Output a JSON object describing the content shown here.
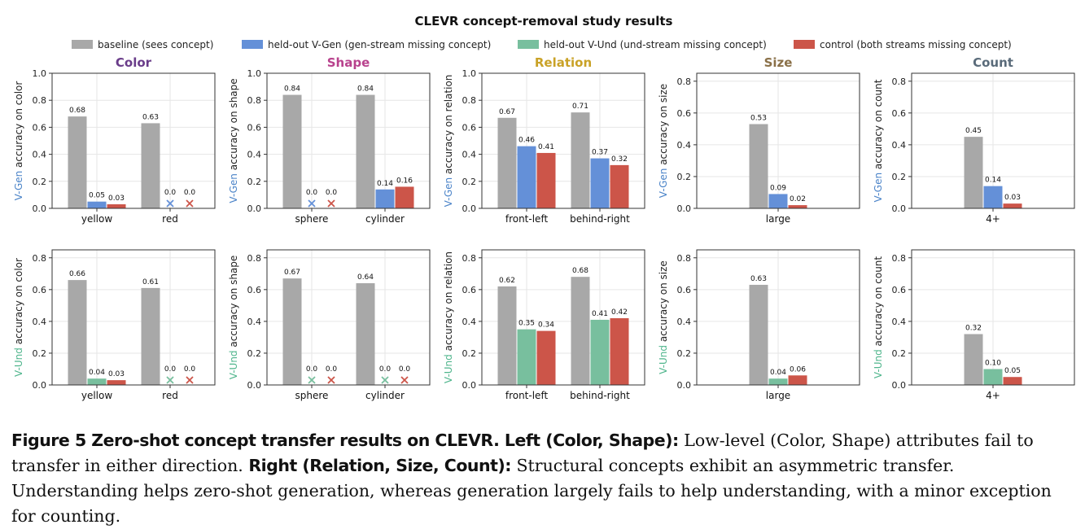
{
  "figure_title": "CLEVR concept-removal study results",
  "colors": {
    "baseline": "#a8a8a8",
    "gen": "#6490d8",
    "und": "#78bf9e",
    "control": "#cc5549",
    "vgen_label": "#4a83c8",
    "vund_label": "#4fb58c",
    "panel_titles": [
      "#6a3d8a",
      "#b8428d",
      "#c9a227",
      "#8a7048",
      "#5a6b7a"
    ]
  },
  "chart_data": {
    "type": "bar",
    "legend_position": "top-center",
    "grid": true,
    "legend": [
      {
        "key": "baseline",
        "label": "baseline (sees concept)"
      },
      {
        "key": "gen",
        "label": "held-out V-Gen (gen-stream missing concept)"
      },
      {
        "key": "und",
        "label": "held-out V-Und (und-stream missing concept)"
      },
      {
        "key": "control",
        "label": "control (both streams missing concept)"
      }
    ],
    "panels": [
      {
        "row": 0,
        "col": 0,
        "title": "Color",
        "ylabel_prefix": "V-Gen",
        "ylabel_suffix": " accuracy on color",
        "ylim": [
          0,
          1.0
        ],
        "yticks": [
          "0.0",
          "0.2",
          "0.4",
          "0.6",
          "0.8",
          "1.0"
        ],
        "categories": [
          "yellow",
          "red"
        ],
        "series": [
          {
            "key": "baseline",
            "values": [
              0.68,
              0.63
            ],
            "labels": [
              "0.68",
              "0.63"
            ]
          },
          {
            "key": "gen",
            "values": [
              0.05,
              0.0
            ],
            "labels": [
              "0.05",
              "0.0"
            ]
          },
          {
            "key": "control",
            "values": [
              0.03,
              0.0
            ],
            "labels": [
              "0.03",
              "0.0"
            ]
          }
        ]
      },
      {
        "row": 0,
        "col": 1,
        "title": "Shape",
        "ylabel_prefix": "V-Gen",
        "ylabel_suffix": " accuracy on shape",
        "ylim": [
          0,
          1.0
        ],
        "yticks": [
          "0.0",
          "0.2",
          "0.4",
          "0.6",
          "0.8",
          "1.0"
        ],
        "categories": [
          "sphere",
          "cylinder"
        ],
        "series": [
          {
            "key": "baseline",
            "values": [
              0.84,
              0.84
            ],
            "labels": [
              "0.84",
              "0.84"
            ]
          },
          {
            "key": "gen",
            "values": [
              0.0,
              0.14
            ],
            "labels": [
              "0.0",
              "0.14"
            ]
          },
          {
            "key": "control",
            "values": [
              0.0,
              0.16
            ],
            "labels": [
              "0.0",
              "0.16"
            ]
          }
        ]
      },
      {
        "row": 0,
        "col": 2,
        "title": "Relation",
        "ylabel_prefix": "V-Gen",
        "ylabel_suffix": " accuracy on relation",
        "ylim": [
          0,
          1.0
        ],
        "yticks": [
          "0.0",
          "0.2",
          "0.4",
          "0.6",
          "0.8",
          "1.0"
        ],
        "categories": [
          "front-left",
          "behind-right"
        ],
        "series": [
          {
            "key": "baseline",
            "values": [
              0.67,
              0.71
            ],
            "labels": [
              "0.67",
              "0.71"
            ]
          },
          {
            "key": "gen",
            "values": [
              0.46,
              0.37
            ],
            "labels": [
              "0.46",
              "0.37"
            ]
          },
          {
            "key": "control",
            "values": [
              0.41,
              0.32
            ],
            "labels": [
              "0.41",
              "0.32"
            ]
          }
        ]
      },
      {
        "row": 0,
        "col": 3,
        "title": "Size",
        "ylabel_prefix": "V-Gen",
        "ylabel_suffix": " accuracy on size",
        "ylim": [
          0,
          0.85
        ],
        "yticks": [
          "0.0",
          "0.2",
          "0.4",
          "0.6",
          "0.8"
        ],
        "categories": [
          "large"
        ],
        "series": [
          {
            "key": "baseline",
            "values": [
              0.53
            ],
            "labels": [
              "0.53"
            ]
          },
          {
            "key": "gen",
            "values": [
              0.09
            ],
            "labels": [
              "0.09"
            ]
          },
          {
            "key": "control",
            "values": [
              0.02
            ],
            "labels": [
              "0.02"
            ]
          }
        ]
      },
      {
        "row": 0,
        "col": 4,
        "title": "Count",
        "ylabel_prefix": "V-Gen",
        "ylabel_suffix": " accuracy on count",
        "ylim": [
          0,
          0.85
        ],
        "yticks": [
          "0.0",
          "0.2",
          "0.4",
          "0.6",
          "0.8"
        ],
        "categories": [
          "4+"
        ],
        "series": [
          {
            "key": "baseline",
            "values": [
              0.45
            ],
            "labels": [
              "0.45"
            ]
          },
          {
            "key": "gen",
            "values": [
              0.14
            ],
            "labels": [
              "0.14"
            ]
          },
          {
            "key": "control",
            "values": [
              0.03
            ],
            "labels": [
              "0.03"
            ]
          }
        ]
      },
      {
        "row": 1,
        "col": 0,
        "title": "",
        "ylabel_prefix": "V-Und",
        "ylabel_suffix": " accuracy on color",
        "ylim": [
          0,
          0.85
        ],
        "yticks": [
          "0.0",
          "0.2",
          "0.4",
          "0.6",
          "0.8"
        ],
        "categories": [
          "yellow",
          "red"
        ],
        "series": [
          {
            "key": "baseline",
            "values": [
              0.66,
              0.61
            ],
            "labels": [
              "0.66",
              "0.61"
            ]
          },
          {
            "key": "und",
            "values": [
              0.04,
              0.0
            ],
            "labels": [
              "0.04",
              "0.0"
            ]
          },
          {
            "key": "control",
            "values": [
              0.03,
              0.0
            ],
            "labels": [
              "0.03",
              "0.0"
            ]
          }
        ]
      },
      {
        "row": 1,
        "col": 1,
        "title": "",
        "ylabel_prefix": "V-Und",
        "ylabel_suffix": " accuracy on shape",
        "ylim": [
          0,
          0.85
        ],
        "yticks": [
          "0.0",
          "0.2",
          "0.4",
          "0.6",
          "0.8"
        ],
        "categories": [
          "sphere",
          "cylinder"
        ],
        "series": [
          {
            "key": "baseline",
            "values": [
              0.67,
              0.64
            ],
            "labels": [
              "0.67",
              "0.64"
            ]
          },
          {
            "key": "und",
            "values": [
              0.0,
              0.0
            ],
            "labels": [
              "0.0",
              "0.0"
            ]
          },
          {
            "key": "control",
            "values": [
              0.0,
              0.0
            ],
            "labels": [
              "0.0",
              "0.0"
            ]
          }
        ]
      },
      {
        "row": 1,
        "col": 2,
        "title": "",
        "ylabel_prefix": "V-Und",
        "ylabel_suffix": " accuracy on relation",
        "ylim": [
          0,
          0.85
        ],
        "yticks": [
          "0.0",
          "0.2",
          "0.4",
          "0.6",
          "0.8"
        ],
        "categories": [
          "front-left",
          "behind-right"
        ],
        "series": [
          {
            "key": "baseline",
            "values": [
              0.62,
              0.68
            ],
            "labels": [
              "0.62",
              "0.68"
            ]
          },
          {
            "key": "und",
            "values": [
              0.35,
              0.41
            ],
            "labels": [
              "0.35",
              "0.41"
            ]
          },
          {
            "key": "control",
            "values": [
              0.34,
              0.42
            ],
            "labels": [
              "0.34",
              "0.42"
            ]
          }
        ]
      },
      {
        "row": 1,
        "col": 3,
        "title": "",
        "ylabel_prefix": "V-Und",
        "ylabel_suffix": " accuracy on size",
        "ylim": [
          0,
          0.85
        ],
        "yticks": [
          "0.0",
          "0.2",
          "0.4",
          "0.6",
          "0.8"
        ],
        "categories": [
          "large"
        ],
        "series": [
          {
            "key": "baseline",
            "values": [
              0.63
            ],
            "labels": [
              "0.63"
            ]
          },
          {
            "key": "und",
            "values": [
              0.04
            ],
            "labels": [
              "0.04"
            ]
          },
          {
            "key": "control",
            "values": [
              0.06
            ],
            "labels": [
              "0.06"
            ]
          }
        ]
      },
      {
        "row": 1,
        "col": 4,
        "title": "",
        "ylabel_prefix": "V-Und",
        "ylabel_suffix": " accuracy on count",
        "ylim": [
          0,
          0.85
        ],
        "yticks": [
          "0.0",
          "0.2",
          "0.4",
          "0.6",
          "0.8"
        ],
        "categories": [
          "4+"
        ],
        "series": [
          {
            "key": "baseline",
            "values": [
              0.32
            ],
            "labels": [
              "0.32"
            ]
          },
          {
            "key": "und",
            "values": [
              0.1
            ],
            "labels": [
              "0.10"
            ]
          },
          {
            "key": "control",
            "values": [
              0.05
            ],
            "labels": [
              "0.05"
            ]
          }
        ]
      }
    ]
  },
  "caption": {
    "label": "Figure 5",
    "bold_title": "Zero-shot concept transfer results on CLEVR.",
    "left_head": "Left (Color, Shape):",
    "left_text": "Low-level (Color, Shape) attributes fail to transfer in either direction.",
    "right_head": "Right (Relation, Size, Count):",
    "right_text": "Structural concepts exhibit an asymmetric transfer. Understanding helps zero-shot generation, whereas generation largely fails to help understanding, with a minor exception for counting."
  }
}
